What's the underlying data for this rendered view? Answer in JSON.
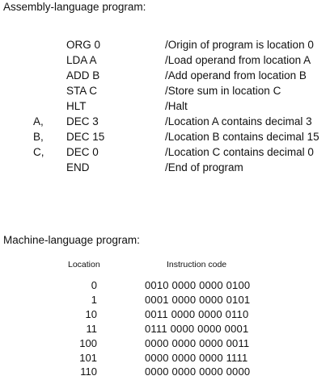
{
  "assembly": {
    "heading": "Assembly-language program:",
    "lines": [
      {
        "label": "",
        "instruction": "ORG 0",
        "comment": "/Origin of program is location 0"
      },
      {
        "label": "",
        "instruction": "LDA A",
        "comment": "/Load operand from location A"
      },
      {
        "label": "",
        "instruction": "ADD B",
        "comment": "/Add operand from location B"
      },
      {
        "label": "",
        "instruction": "STA C",
        "comment": "/Store sum in location C"
      },
      {
        "label": "",
        "instruction": "HLT",
        "comment": "/Halt"
      },
      {
        "label": "A,",
        "instruction": "DEC  3",
        "comment": "/Location A contains decimal 3"
      },
      {
        "label": "B,",
        "instruction": "DEC  15",
        "comment": "/Location B contains decimal 15"
      },
      {
        "label": "C,",
        "instruction": "DEC  0",
        "comment": "/Location C contains decimal 0"
      },
      {
        "label": "",
        "instruction": "END",
        "comment": "/End of program"
      }
    ]
  },
  "machine": {
    "heading": "Machine-language program:",
    "columns": {
      "location": "Location",
      "code": "Instruction code"
    },
    "rows": [
      {
        "location": "0",
        "code": "0010 0000 0000 0100"
      },
      {
        "location": "1",
        "code": "0001 0000 0000 0101"
      },
      {
        "location": "10",
        "code": "0011 0000 0000 0110"
      },
      {
        "location": "11",
        "code": "0111 0000 0000 0001"
      },
      {
        "location": "100",
        "code": "0000 0000 0000 0011"
      },
      {
        "location": "101",
        "code": "0000 0000 0000 1111"
      },
      {
        "location": "110",
        "code": "0000 0000 0000 0000"
      }
    ]
  }
}
